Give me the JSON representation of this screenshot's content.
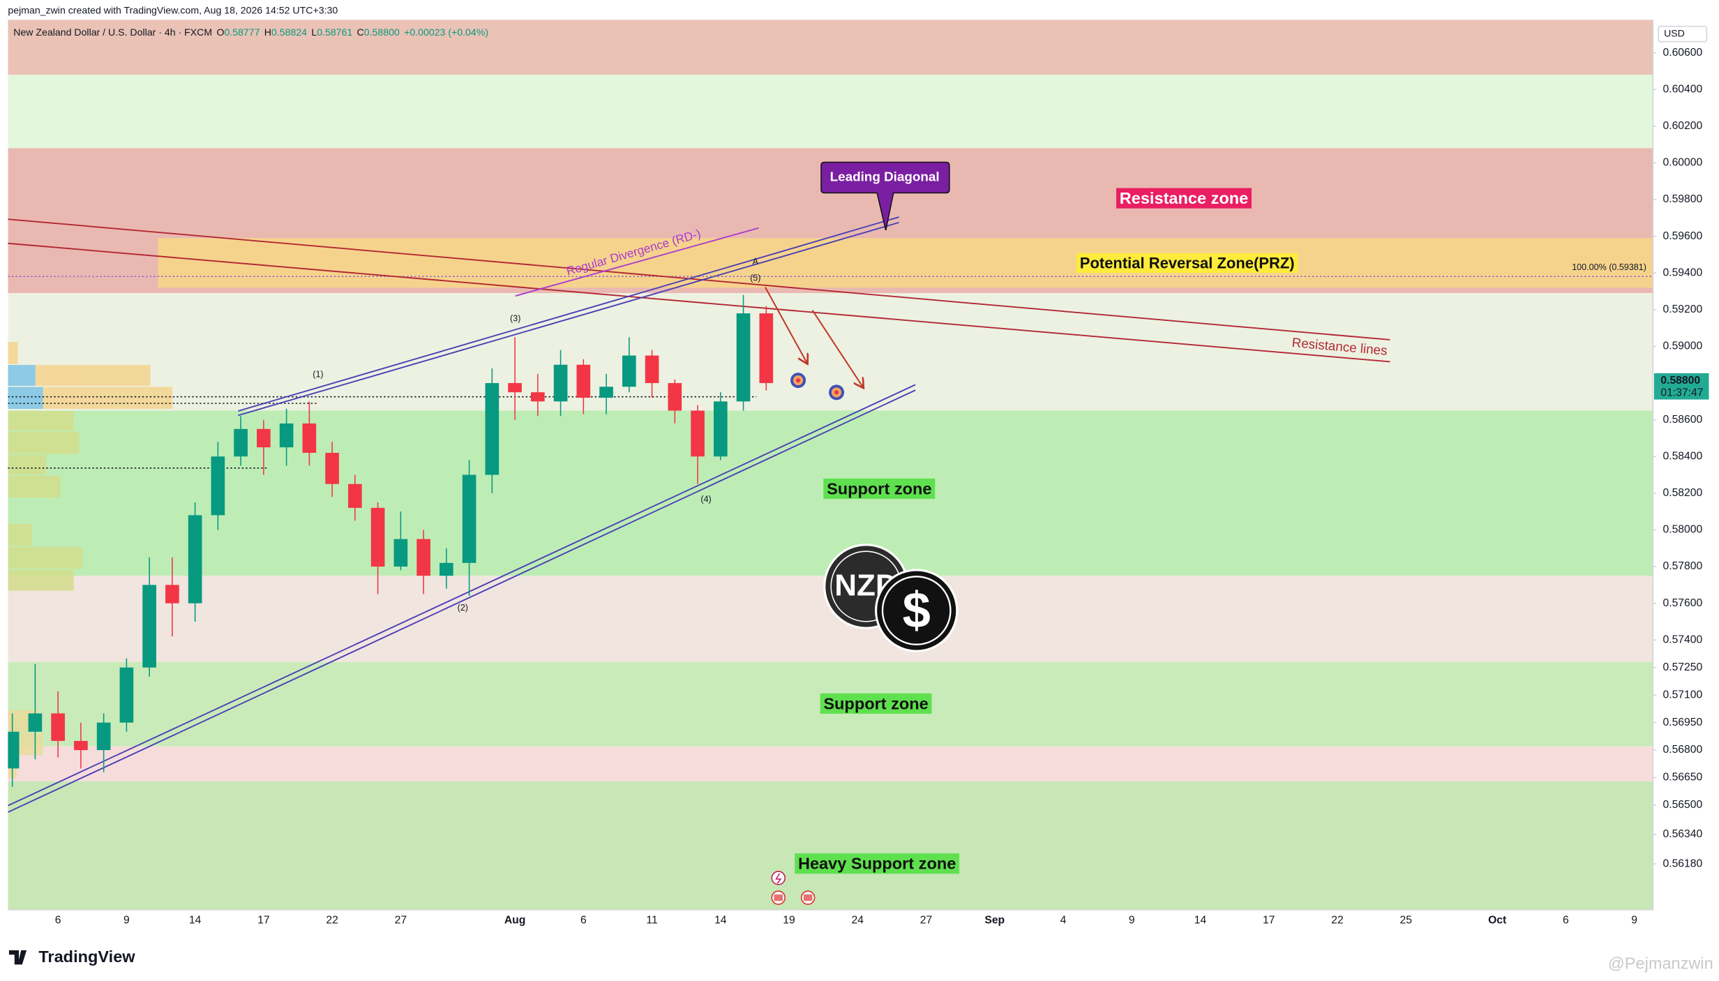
{
  "header": {
    "credit": "pejman_zwin created with TradingView.com, Aug 18, 2026 14:52 UTC+3:30",
    "symbol": "New Zealand Dollar / U.S. Dollar · 4h · FXCM",
    "ohlc": [
      {
        "key": "O",
        "value": "0.58777"
      },
      {
        "key": "H",
        "value": "0.58824"
      },
      {
        "key": "L",
        "value": "0.58761"
      },
      {
        "key": "C",
        "value": "0.58800"
      }
    ],
    "change": "+0.00023 (+0.04%)"
  },
  "footer": {
    "brand": "TradingView",
    "watermark": "@Pejmanzwin"
  },
  "chart_data": {
    "type": "candlestick",
    "currency": "USD",
    "up_color": "#089981",
    "down_color": "#f23645",
    "categories": [
      null,
      null,
      "6",
      null,
      null,
      "9",
      null,
      null,
      "14",
      null,
      null,
      "17",
      null,
      null,
      "22",
      null,
      null,
      "27",
      null,
      null,
      null,
      null,
      "Aug",
      null,
      null,
      "6",
      null,
      null,
      "11",
      null,
      null,
      "14",
      null,
      null,
      "19",
      null,
      null,
      "24",
      null,
      null,
      "27",
      null,
      null,
      "Sep",
      null,
      null,
      "4",
      null,
      null,
      "9",
      null,
      null,
      "14",
      null,
      null,
      "17",
      null,
      null,
      "22",
      null,
      null,
      "25",
      null,
      null,
      null,
      "Oct",
      null,
      null,
      "6",
      null,
      null,
      "9"
    ],
    "open": [
      0.567,
      0.569,
      0.57,
      0.5685,
      0.568,
      0.5695,
      0.5725,
      0.577,
      0.576,
      0.5808,
      0.584,
      0.5855,
      0.5845,
      0.5858,
      0.5842,
      0.5825,
      0.5812,
      0.578,
      0.5795,
      0.5775,
      0.5782,
      0.583,
      0.588,
      0.5875,
      0.587,
      0.589,
      0.5872,
      0.5878,
      0.5895,
      0.588,
      0.5865,
      0.584,
      0.587,
      0.5918,
      null,
      null,
      null,
      null,
      null,
      null,
      null,
      null,
      null,
      null,
      null,
      null,
      null,
      null,
      null,
      null,
      null,
      null,
      null,
      null,
      null,
      null,
      null,
      null,
      null,
      null,
      null,
      null,
      null,
      null,
      null,
      null,
      null,
      null,
      null,
      null,
      null,
      null
    ],
    "high": [
      0.57,
      0.5727,
      0.5712,
      0.5695,
      0.57,
      0.573,
      0.5785,
      0.5785,
      0.5815,
      0.5848,
      0.5862,
      0.586,
      0.5866,
      0.587,
      0.5848,
      0.583,
      0.5815,
      0.581,
      0.58,
      0.579,
      0.5838,
      0.5888,
      0.5905,
      0.5885,
      0.5898,
      0.5893,
      0.5885,
      0.5905,
      0.5898,
      0.5882,
      0.5868,
      0.5875,
      0.5928,
      0.5922,
      null,
      null,
      null,
      null,
      null,
      null,
      null,
      null,
      null,
      null,
      null,
      null,
      null,
      null,
      null,
      null,
      null,
      null,
      null,
      null,
      null,
      null,
      null,
      null,
      null,
      null,
      null,
      null,
      null,
      null,
      null,
      null,
      null,
      null,
      null,
      null,
      null,
      null
    ],
    "low": [
      0.566,
      0.5675,
      0.5676,
      0.567,
      0.5668,
      0.569,
      0.572,
      0.5742,
      0.575,
      0.58,
      0.5835,
      0.583,
      0.5835,
      0.5835,
      0.5818,
      0.5805,
      0.5765,
      0.5778,
      0.5765,
      0.5768,
      0.5764,
      0.582,
      0.586,
      0.5862,
      0.5862,
      0.5863,
      0.5863,
      0.5875,
      0.5872,
      0.5858,
      0.5825,
      0.5838,
      0.5865,
      0.5876,
      null,
      null,
      null,
      null,
      null,
      null,
      null,
      null,
      null,
      null,
      null,
      null,
      null,
      null,
      null,
      null,
      null,
      null,
      null,
      null,
      null,
      null,
      null,
      null,
      null,
      null,
      null,
      null,
      null,
      null,
      null,
      null,
      null,
      null,
      null,
      null,
      null,
      null
    ],
    "close": [
      0.569,
      0.57,
      0.5685,
      0.568,
      0.5695,
      0.5725,
      0.577,
      0.576,
      0.5808,
      0.584,
      0.5855,
      0.5845,
      0.5858,
      0.5842,
      0.5825,
      0.5812,
      0.578,
      0.5795,
      0.5775,
      0.5782,
      0.583,
      0.588,
      0.5875,
      0.587,
      0.589,
      0.5872,
      0.5878,
      0.5895,
      0.588,
      0.5865,
      0.584,
      0.587,
      0.5918,
      0.588,
      null,
      null,
      null,
      null,
      null,
      null,
      null,
      null,
      null,
      null,
      null,
      null,
      null,
      null,
      null,
      null,
      null,
      null,
      null,
      null,
      null,
      null,
      null,
      null,
      null,
      null,
      null,
      null,
      null,
      null,
      null,
      null,
      null,
      null,
      null,
      null,
      null,
      null
    ],
    "ylim": [
      0.5593,
      0.6078
    ],
    "yticks": [
      {
        "value": 0.606,
        "label": "0.60600"
      },
      {
        "value": 0.604,
        "label": "0.60400"
      },
      {
        "value": 0.602,
        "label": "0.60200"
      },
      {
        "value": 0.6,
        "label": "0.60000"
      },
      {
        "value": 0.598,
        "label": "0.59800"
      },
      {
        "value": 0.596,
        "label": "0.59600"
      },
      {
        "value": 0.594,
        "label": "0.59400"
      },
      {
        "value": 0.592,
        "label": "0.59200"
      },
      {
        "value": 0.59,
        "label": "0.59000"
      },
      {
        "value": 0.586,
        "label": "0.58600"
      },
      {
        "value": 0.584,
        "label": "0.58400"
      },
      {
        "value": 0.582,
        "label": "0.58200"
      },
      {
        "value": 0.58,
        "label": "0.58000"
      },
      {
        "value": 0.578,
        "label": "0.57800"
      },
      {
        "value": 0.576,
        "label": "0.57600"
      },
      {
        "value": 0.574,
        "label": "0.57400"
      },
      {
        "value": 0.5725,
        "label": "0.57250"
      },
      {
        "value": 0.571,
        "label": "0.57100"
      },
      {
        "value": 0.5695,
        "label": "0.56950"
      },
      {
        "value": 0.568,
        "label": "0.56800"
      },
      {
        "value": 0.5665,
        "label": "0.56650"
      },
      {
        "value": 0.565,
        "label": "0.56500"
      },
      {
        "value": 0.5634,
        "label": "0.56340"
      },
      {
        "value": 0.5618,
        "label": "0.56180"
      }
    ],
    "grid": false,
    "last_price": {
      "value": 0.588,
      "label": "0.58800",
      "countdown": "01:37:47",
      "color": "#22ab94"
    },
    "fib_level": {
      "value": 0.59381,
      "label": "100.00% (0.59381)",
      "color": "#8e5bd0"
    },
    "zones": [
      {
        "from": 0.6048,
        "to": 0.6078,
        "color": "#eac2b6"
      },
      {
        "from": 0.6008,
        "to": 0.6048,
        "color": "#e3f7dd"
      },
      {
        "from": 0.5929,
        "to": 0.6008,
        "color": "#e9b9b1",
        "label": "Resistance zone"
      },
      {
        "from": 0.5932,
        "to": 0.5959,
        "color": "#f6d38d",
        "label": "Potential Reversal Zone(PRZ)"
      },
      {
        "from": 0.5865,
        "to": 0.5929,
        "color": "#edf1e1"
      },
      {
        "from": 0.5775,
        "to": 0.5865,
        "color": "#bdedb5",
        "label": "Support zone"
      },
      {
        "from": 0.5728,
        "to": 0.5775,
        "color": "#f1e5df"
      },
      {
        "from": 0.5682,
        "to": 0.5728,
        "color": "#c9ebb9",
        "label": "Support zone"
      },
      {
        "from": 0.5663,
        "to": 0.5682,
        "color": "#f6dddc"
      },
      {
        "from": 0.5593,
        "to": 0.5663,
        "color": "#c7e7b5",
        "label": "Heavy Support zone"
      }
    ],
    "annotations": {
      "leading_diagonal": "Leading Diagonal",
      "divergence": "Regular Divergence (RD-)",
      "resistance_lines": "Resistance lines",
      "waves": [
        "(1)",
        "(2)",
        "(3)",
        "(4)",
        "(5)",
        "A"
      ],
      "coin": [
        "NZD",
        "$"
      ]
    }
  }
}
